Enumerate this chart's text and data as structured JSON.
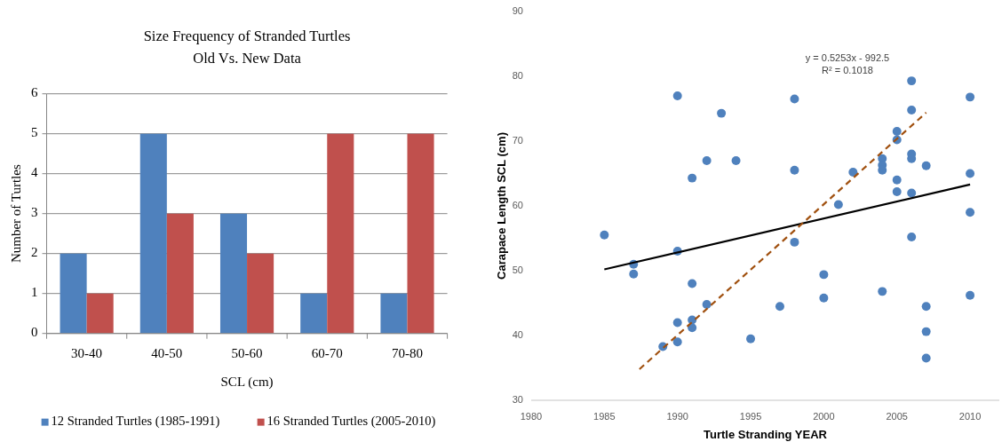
{
  "chart_data": [
    {
      "type": "bar",
      "title": "Size Frequency of Stranded Turtles",
      "subtitle": "Old Vs. New Data",
      "xlabel": "SCL (cm)",
      "ylabel": "Number of Turtles",
      "categories": [
        "30-40",
        "40-50",
        "50-60",
        "60-70",
        "70-80"
      ],
      "series": [
        {
          "name": "12 Stranded Turtles (1985-1991)",
          "color": "#4f81bd",
          "values": [
            2,
            5,
            3,
            1,
            1
          ]
        },
        {
          "name": "16 Stranded Turtles (2005-2010)",
          "color": "#c0504d",
          "values": [
            1,
            3,
            2,
            5,
            5
          ]
        }
      ],
      "ylim": [
        0,
        6
      ],
      "yticks": [
        0,
        1,
        2,
        3,
        4,
        5,
        6
      ],
      "grid": "y",
      "legend": "bottom"
    },
    {
      "type": "scatter",
      "xlabel": "Turtle Stranding YEAR",
      "ylabel": "Carapace Length SCL (cm)",
      "xlim": [
        1980,
        2012
      ],
      "xticks": [
        1980,
        1985,
        1990,
        1995,
        2000,
        2005,
        2010
      ],
      "ylim": [
        30,
        90
      ],
      "yticks": [
        30,
        40,
        50,
        60,
        70,
        80,
        90
      ],
      "series": [
        {
          "type": "scatter",
          "color": "#4f81bd",
          "marker": "circle",
          "x": [
            1985,
            1987,
            1987,
            1989,
            1990,
            1990,
            1990,
            1990,
            1991,
            1991,
            1991,
            1991,
            1992,
            1992,
            1993,
            1994,
            1995,
            1997,
            1998,
            1998,
            1998,
            2000,
            2000,
            2001,
            2002,
            2004,
            2004,
            2004,
            2004,
            2005,
            2005,
            2005,
            2005,
            2006,
            2006,
            2006,
            2006,
            2006,
            2006,
            2007,
            2007,
            2007,
            2007,
            2010,
            2010,
            2010,
            2010
          ],
          "values": [
            55.5,
            51,
            49.5,
            38.3,
            77,
            53,
            42,
            39,
            64.3,
            48,
            42.4,
            41.2,
            67,
            44.8,
            74.3,
            67,
            39.5,
            44.5,
            76.5,
            65.5,
            54.4,
            49.4,
            45.8,
            60.2,
            65.2,
            67.3,
            66.3,
            65.5,
            46.8,
            71.5,
            70.2,
            64,
            62.2,
            79.3,
            74.8,
            68,
            67.3,
            62,
            55.2,
            66.2,
            44.5,
            40.6,
            36.5,
            76.8,
            65,
            59,
            46.2
          ]
        },
        {
          "type": "line",
          "color": "#000000",
          "line_style": "solid",
          "x": [
            1985,
            2010
          ],
          "values": [
            50.2,
            63.3
          ]
        },
        {
          "type": "line",
          "color": "#a0500f",
          "line_style": "dashed",
          "x": [
            1987.4,
            2007
          ],
          "values": [
            34.8,
            74.4
          ]
        }
      ],
      "annotations": [
        "y = 0.5253x - 992.5",
        "R² = 0.1018"
      ]
    }
  ]
}
